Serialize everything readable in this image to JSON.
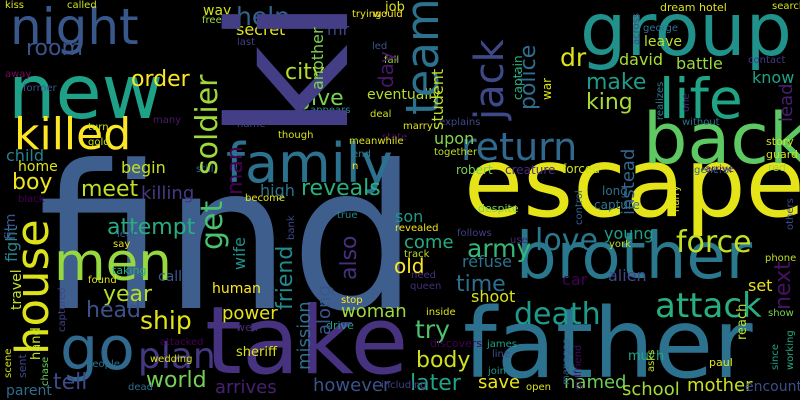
{
  "words": [
    {
      "text": "find",
      "color": "#3e5f8e"
    },
    {
      "text": "kill",
      "color": "#433e85"
    },
    {
      "text": "escape",
      "color": "#e5e419"
    },
    {
      "text": "take",
      "color": "#46327e"
    },
    {
      "text": "father",
      "color": "#2c728e"
    },
    {
      "text": "new",
      "color": "#1fa187"
    },
    {
      "text": "group",
      "color": "#21918c"
    },
    {
      "text": "brother",
      "color": "#2a788e"
    },
    {
      "text": "family",
      "color": "#2c728e"
    },
    {
      "text": "back",
      "color": "#5ec962"
    },
    {
      "text": "night",
      "color": "#38588c"
    },
    {
      "text": "life",
      "color": "#20a486"
    },
    {
      "text": "men",
      "color": "#95d840"
    },
    {
      "text": "killed",
      "color": "#fde725"
    },
    {
      "text": "go",
      "color": "#31688e"
    },
    {
      "text": "house",
      "color": "#dde318"
    },
    {
      "text": "return",
      "color": "#31688e"
    },
    {
      "text": "jack",
      "color": "#3e4989"
    },
    {
      "text": "team",
      "color": "#2c728e"
    },
    {
      "text": "love",
      "color": "#2a788e"
    },
    {
      "text": "attack",
      "color": "#29af7f"
    },
    {
      "text": "force",
      "color": "#c2df23"
    },
    {
      "text": "soldier",
      "color": "#9dd93b"
    },
    {
      "text": "get",
      "color": "#4ac16d"
    },
    {
      "text": "plan",
      "color": "#453882"
    },
    {
      "text": "death",
      "color": "#1f9a8a"
    },
    {
      "text": "help",
      "color": "#33638d"
    },
    {
      "text": "world",
      "color": "#75d054"
    },
    {
      "text": "ship",
      "color": "#e2e418"
    },
    {
      "text": "army",
      "color": "#35b779"
    },
    {
      "text": "friend",
      "color": "#238a8d"
    },
    {
      "text": "man",
      "color": "#440154"
    },
    {
      "text": "room",
      "color": "#3b528b"
    },
    {
      "text": "order",
      "color": "#fde725"
    },
    {
      "text": "city",
      "color": "#b5de2b"
    },
    {
      "text": "give",
      "color": "#7ad151"
    },
    {
      "text": "police",
      "color": "#2e6e8e"
    },
    {
      "text": "king",
      "color": "#a8db34"
    },
    {
      "text": "make",
      "color": "#1e9c89"
    },
    {
      "text": "meet",
      "color": "#c0df25"
    },
    {
      "text": "attempt",
      "color": "#27ad81"
    },
    {
      "text": "reveals",
      "color": "#29af7f"
    },
    {
      "text": "year",
      "color": "#b5de2b"
    },
    {
      "text": "head",
      "color": "#3b528b"
    },
    {
      "text": "time",
      "color": "#2d708e"
    },
    {
      "text": "try",
      "color": "#4ac16d"
    },
    {
      "text": "woman",
      "color": "#9dd93b"
    },
    {
      "text": "body",
      "color": "#d0e11c"
    },
    {
      "text": "later",
      "color": "#20a386"
    },
    {
      "text": "save",
      "color": "#eae51a"
    },
    {
      "text": "named",
      "color": "#6ece58"
    },
    {
      "text": "school",
      "color": "#a5db36"
    },
    {
      "text": "mother",
      "color": "#cae11f"
    },
    {
      "text": "tell",
      "color": "#3e4989"
    },
    {
      "text": "arrives",
      "color": "#482173"
    },
    {
      "text": "however",
      "color": "#3b528b"
    },
    {
      "text": "boy",
      "color": "#f1e51d"
    },
    {
      "text": "fight",
      "color": "#25858e"
    },
    {
      "text": "mission",
      "color": "#2d708e"
    },
    {
      "text": "along",
      "color": "#39568c"
    },
    {
      "text": "also",
      "color": "#46307e"
    },
    {
      "text": "son",
      "color": "#1f988b"
    },
    {
      "text": "come",
      "color": "#25ac82"
    },
    {
      "text": "old",
      "color": "#fde725"
    },
    {
      "text": "refuse",
      "color": "#2c728e"
    },
    {
      "text": "shoot",
      "color": "#d8e219"
    },
    {
      "text": "young",
      "color": "#1f9e89"
    },
    {
      "text": "alien",
      "color": "#3f4889"
    },
    {
      "text": "car",
      "color": "#440154"
    },
    {
      "text": "power",
      "color": "#e5e419"
    },
    {
      "text": "human",
      "color": "#fde725"
    },
    {
      "text": "killing",
      "color": "#443a83"
    },
    {
      "text": "high",
      "color": "#2c728e"
    },
    {
      "text": "begin",
      "color": "#c8e020"
    },
    {
      "text": "dr",
      "color": "#dde318"
    },
    {
      "text": "david",
      "color": "#a8db34"
    },
    {
      "text": "battle",
      "color": "#9bd93c"
    },
    {
      "text": "know",
      "color": "#20a386"
    },
    {
      "text": "lead",
      "color": "#481f70"
    },
    {
      "text": "next",
      "color": "#471164"
    },
    {
      "text": "set",
      "color": "#e7e419"
    },
    {
      "text": "instead",
      "color": "#31678e"
    },
    {
      "text": "wife",
      "color": "#21918c"
    },
    {
      "text": "film",
      "color": "#3a548c"
    },
    {
      "text": "rescue",
      "color": "#39568c"
    },
    {
      "text": "child",
      "color": "#26828e"
    },
    {
      "text": "home",
      "color": "#dde318"
    },
    {
      "text": "way",
      "color": "#d2e21b"
    },
    {
      "text": "secret",
      "color": "#e2e418"
    },
    {
      "text": "another",
      "color": "#7fd34e"
    },
    {
      "text": "mr",
      "color": "#404588"
    },
    {
      "text": "day",
      "color": "#48186a"
    },
    {
      "text": "eventually",
      "color": "#b8de29"
    },
    {
      "text": "student",
      "color": "#bddf26"
    },
    {
      "text": "captain",
      "color": "#29af7f"
    },
    {
      "text": "war",
      "color": "#dde318"
    },
    {
      "text": "leave",
      "color": "#bddf26"
    },
    {
      "text": "travel",
      "color": "#c8e020"
    },
    {
      "text": "parent",
      "color": "#2f6c8e"
    },
    {
      "text": "encounter",
      "color": "#3c4f8a"
    },
    {
      "text": "hand",
      "color": "#c5e021"
    },
    {
      "text": "job",
      "color": "#d8e219"
    },
    {
      "text": "trying",
      "color": "#e5e419"
    },
    {
      "text": "would",
      "color": "#fde725"
    },
    {
      "text": "led",
      "color": "#3b528b"
    },
    {
      "text": "fall",
      "color": "#9bd93c"
    },
    {
      "text": "upon",
      "color": "#84d44b"
    },
    {
      "text": "creature",
      "color": "#472d7b"
    },
    {
      "text": "forced",
      "color": "#cde11d"
    },
    {
      "text": "robert",
      "color": "#77d153"
    },
    {
      "text": "long",
      "color": "#2d708e"
    },
    {
      "text": "capture",
      "color": "#2a768e"
    },
    {
      "text": "control",
      "color": "#355f8d"
    },
    {
      "text": "despite",
      "color": "#7fd34e"
    },
    {
      "text": "call",
      "color": "#38598c"
    },
    {
      "text": "sheriff",
      "color": "#dde318"
    },
    {
      "text": "well",
      "color": "#472f7d"
    },
    {
      "text": "drive",
      "color": "#1fa187"
    },
    {
      "text": "discovers",
      "color": "#440154"
    },
    {
      "text": "inside",
      "color": "#d8e219"
    },
    {
      "text": "stop",
      "color": "#fde725"
    },
    {
      "text": "including",
      "color": "#424086"
    },
    {
      "text": "wedding",
      "color": "#dde318"
    },
    {
      "text": "people",
      "color": "#2c728e"
    },
    {
      "text": "dead",
      "color": "#2e6e8e"
    },
    {
      "text": "scene",
      "color": "#cde11d"
    },
    {
      "text": "captured",
      "color": "#414487"
    },
    {
      "text": "black",
      "color": "#440154"
    },
    {
      "text": "sent",
      "color": "#3f4788"
    },
    {
      "text": "chase",
      "color": "#6ccd5a"
    },
    {
      "text": "taking",
      "color": "#29af7f"
    },
    {
      "text": "say",
      "color": "#e5e419"
    },
    {
      "text": "leaf",
      "color": "#38588c"
    },
    {
      "text": "bank",
      "color": "#3f4788"
    },
    {
      "text": "revealed",
      "color": "#f1e51d"
    },
    {
      "text": "follows",
      "color": "#433e85"
    },
    {
      "text": "track",
      "color": "#b8de29"
    },
    {
      "text": "queen",
      "color": "#472c7a"
    },
    {
      "text": "need",
      "color": "#46307e"
    },
    {
      "text": "use",
      "color": "#482475"
    },
    {
      "text": "line",
      "color": "#3e4a89"
    },
    {
      "text": "james",
      "color": "#1f9f88"
    },
    {
      "text": "join",
      "color": "#1f988b"
    },
    {
      "text": "open",
      "color": "#dde318"
    },
    {
      "text": "york",
      "color": "#bddf26"
    },
    {
      "text": "much",
      "color": "#22a785"
    },
    {
      "text": "asks",
      "color": "#c5e021"
    },
    {
      "text": "paul",
      "color": "#e7e419"
    },
    {
      "text": "show",
      "color": "#7ad151"
    },
    {
      "text": "reach",
      "color": "#b5de2b"
    },
    {
      "text": "since",
      "color": "#1fa187"
    },
    {
      "text": "phone",
      "color": "#c2df23"
    },
    {
      "text": "working",
      "color": "#22a884"
    },
    {
      "text": "manages",
      "color": "#365c8d"
    },
    {
      "text": "story",
      "color": "#d0e11c"
    },
    {
      "text": "guard",
      "color": "#c8e020"
    },
    {
      "text": "red",
      "color": "#9bd93c"
    },
    {
      "text": "girlfriend",
      "color": "#460a5d"
    },
    {
      "text": "general",
      "color": "#31688e"
    },
    {
      "text": "arrive",
      "color": "#471063"
    },
    {
      "text": "without",
      "color": "#2e6e8e"
    },
    {
      "text": "others",
      "color": "#3d4d8a"
    },
    {
      "text": "contact",
      "color": "#443983"
    },
    {
      "text": "harry",
      "color": "#e2e418"
    },
    {
      "text": "george",
      "color": "#2c718e"
    },
    {
      "text": "dream",
      "color": "#d8e219"
    },
    {
      "text": "hotel",
      "color": "#e5e419"
    },
    {
      "text": "search",
      "color": "#d0e11c"
    },
    {
      "text": "one",
      "color": "#482576"
    },
    {
      "text": "realizes",
      "color": "#2a788e"
    },
    {
      "text": "explains",
      "color": "#3f4889"
    },
    {
      "text": "marry",
      "color": "#dde318"
    },
    {
      "text": "deal",
      "color": "#cde11d"
    },
    {
      "text": "state",
      "color": "#471365"
    },
    {
      "text": "together",
      "color": "#bddf26"
    },
    {
      "text": "appears",
      "color": "#23888e"
    },
    {
      "text": "although",
      "color": "#dde318"
    },
    {
      "text": "name",
      "color": "#414487"
    },
    {
      "text": "though",
      "color": "#d8e219"
    },
    {
      "text": "meanwhile",
      "color": "#dde318"
    },
    {
      "text": "end",
      "color": "#2a788e"
    },
    {
      "text": "n",
      "color": "#fde725"
    },
    {
      "text": "true",
      "color": "#25848e"
    },
    {
      "text": "still",
      "color": "#31688e"
    },
    {
      "text": "many",
      "color": "#481a6c"
    },
    {
      "text": "turn",
      "color": "#c5e021"
    },
    {
      "text": "gold",
      "color": "#cde11d"
    },
    {
      "text": "kiss",
      "color": "#dde318"
    },
    {
      "text": "called",
      "color": "#cde11d"
    },
    {
      "text": "free",
      "color": "#9bd93c"
    },
    {
      "text": "last",
      "color": "#433e85"
    },
    {
      "text": "away",
      "color": "#7a0a5d"
    },
    {
      "text": "former",
      "color": "#3b528b"
    },
    {
      "text": "attacked",
      "color": "#440154"
    },
    {
      "text": "found",
      "color": "#dde318"
    },
    {
      "text": "become",
      "color": "#e5e419"
    },
    {
      "text": "across",
      "color": "#3e4989"
    }
  ]
}
